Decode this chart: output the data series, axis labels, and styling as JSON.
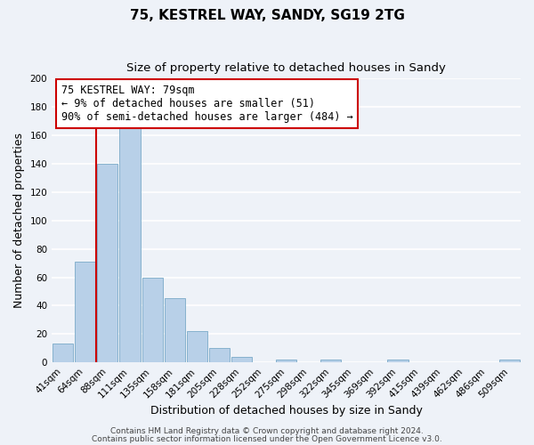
{
  "title": "75, KESTREL WAY, SANDY, SG19 2TG",
  "subtitle": "Size of property relative to detached houses in Sandy",
  "xlabel": "Distribution of detached houses by size in Sandy",
  "ylabel": "Number of detached properties",
  "bar_color": "#b8d0e8",
  "bar_edge_color": "#7aaac8",
  "bins": [
    "41sqm",
    "64sqm",
    "88sqm",
    "111sqm",
    "135sqm",
    "158sqm",
    "181sqm",
    "205sqm",
    "228sqm",
    "252sqm",
    "275sqm",
    "298sqm",
    "322sqm",
    "345sqm",
    "369sqm",
    "392sqm",
    "415sqm",
    "439sqm",
    "462sqm",
    "486sqm",
    "509sqm"
  ],
  "values": [
    13,
    71,
    140,
    165,
    60,
    45,
    22,
    10,
    4,
    0,
    2,
    0,
    2,
    0,
    0,
    2,
    0,
    0,
    0,
    0,
    2
  ],
  "vline_pos": 1.5,
  "vline_color": "#cc0000",
  "ann_line1": "75 KESTREL WAY: 79sqm",
  "ann_line2": "← 9% of detached houses are smaller (51)",
  "ann_line3": "90% of semi-detached houses are larger (484) →",
  "ylim": [
    0,
    200
  ],
  "yticks": [
    0,
    20,
    40,
    60,
    80,
    100,
    120,
    140,
    160,
    180,
    200
  ],
  "footer1": "Contains HM Land Registry data © Crown copyright and database right 2024.",
  "footer2": "Contains public sector information licensed under the Open Government Licence v3.0.",
  "background_color": "#eef2f8",
  "grid_color": "#ffffff",
  "title_fontsize": 11,
  "subtitle_fontsize": 9.5,
  "axis_label_fontsize": 9,
  "tick_fontsize": 7.5,
  "annotation_fontsize": 8.5,
  "footer_fontsize": 6.5
}
